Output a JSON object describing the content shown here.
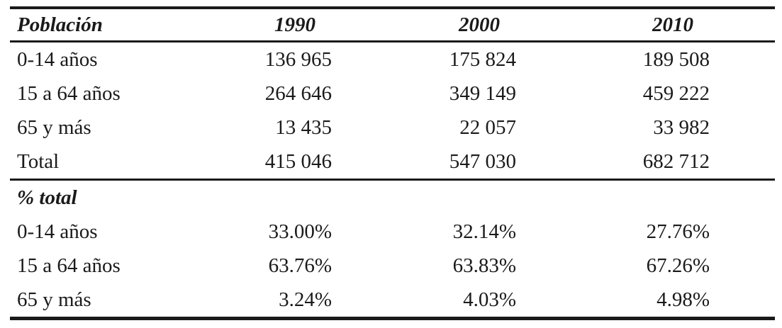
{
  "colors": {
    "text": "#1a1a1a",
    "rules": "#1a1a1a",
    "background": "#ffffff"
  },
  "table": {
    "columns": [
      "Población",
      "1990",
      "2000",
      "2010"
    ],
    "sections": [
      {
        "rows": [
          {
            "label": "0-14 años",
            "values": [
              "136 965",
              "175 824",
              "189 508"
            ]
          },
          {
            "label": "15 a 64 años",
            "values": [
              "264 646",
              "349 149",
              "459 222"
            ]
          },
          {
            "label": "65 y más",
            "values": [
              "13 435",
              "22 057",
              "33 982"
            ]
          },
          {
            "label": "Total",
            "values": [
              "415 046",
              "547 030",
              "682 712"
            ]
          }
        ]
      },
      {
        "header": "% total",
        "rows": [
          {
            "label": "0-14 años",
            "values": [
              "33.00%",
              "32.14%",
              "27.76%"
            ]
          },
          {
            "label": "15 a 64 años",
            "values": [
              "63.76%",
              "63.83%",
              "67.26%"
            ]
          },
          {
            "label": "65 y más",
            "values": [
              "3.24%",
              "4.03%",
              "4.98%"
            ]
          }
        ]
      }
    ]
  }
}
